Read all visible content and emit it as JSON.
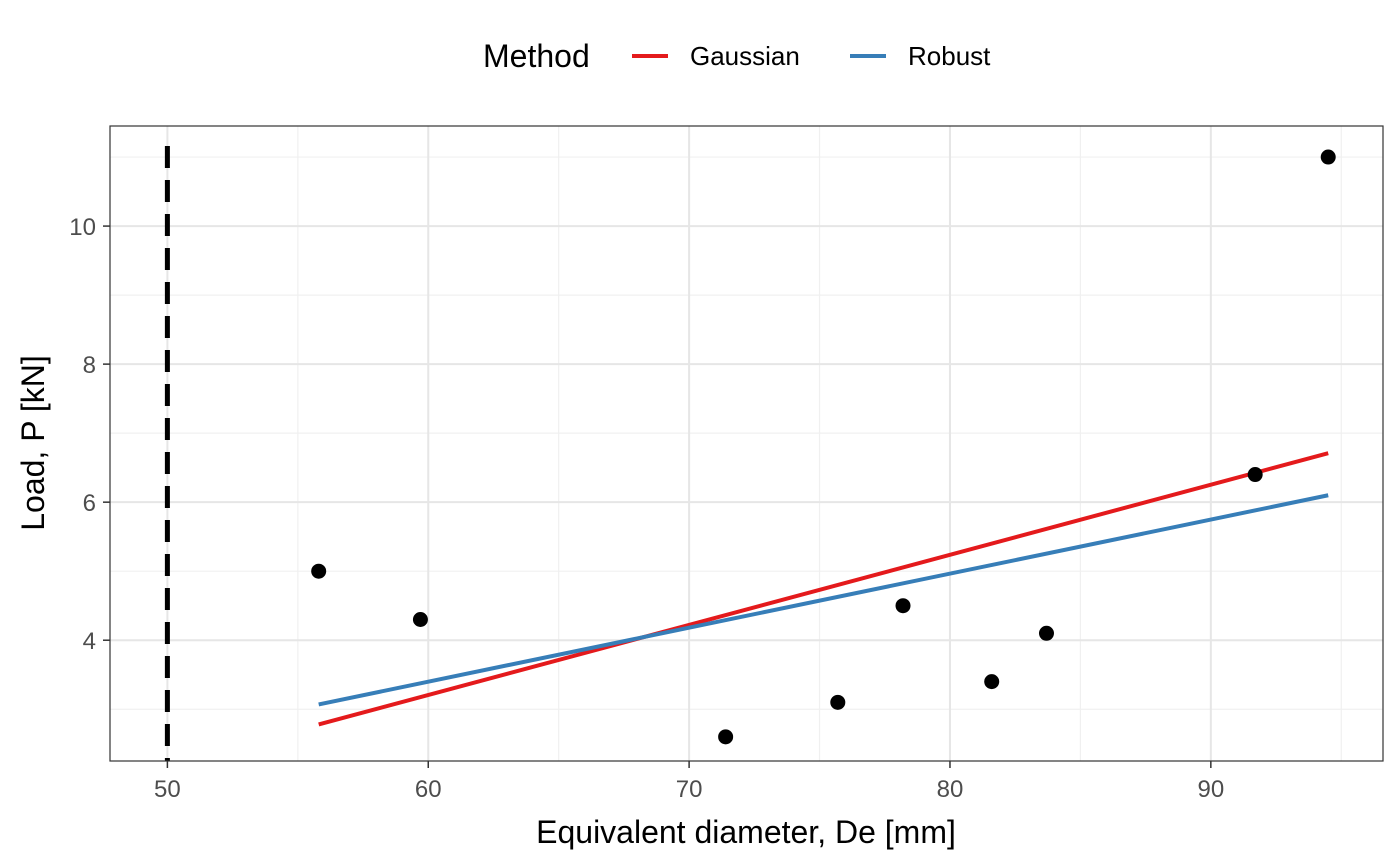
{
  "chart_data": {
    "type": "scatter",
    "xlabel": "Equivalent diameter, De [mm]",
    "ylabel": "Load, P [kN]",
    "xlim": [
      47.8,
      96.6
    ],
    "ylim": [
      2.25,
      11.45
    ],
    "x_ticks": [
      50,
      60,
      70,
      80,
      90
    ],
    "y_ticks": [
      4,
      6,
      8,
      10
    ],
    "grid": true,
    "legend": {
      "title": "Method",
      "position": "top",
      "entries": [
        {
          "label": "Gaussian",
          "color": "#e41a1c"
        },
        {
          "label": "Robust",
          "color": "#377eb8"
        }
      ]
    },
    "points": [
      {
        "x": 55.8,
        "y": 5.0
      },
      {
        "x": 59.7,
        "y": 4.3
      },
      {
        "x": 71.4,
        "y": 2.6
      },
      {
        "x": 75.7,
        "y": 3.1
      },
      {
        "x": 78.2,
        "y": 4.5
      },
      {
        "x": 81.6,
        "y": 3.4
      },
      {
        "x": 83.7,
        "y": 4.1
      },
      {
        "x": 91.7,
        "y": 6.4
      },
      {
        "x": 94.5,
        "y": 11.0
      }
    ],
    "fit_lines": [
      {
        "label": "Gaussian",
        "color": "#e41a1c",
        "x": [
          55.8,
          94.5
        ],
        "y": [
          2.78,
          6.71
        ]
      },
      {
        "label": "Robust",
        "color": "#377eb8",
        "x": [
          55.8,
          94.5
        ],
        "y": [
          3.07,
          6.1
        ]
      }
    ],
    "reference_line": {
      "x": 50,
      "style": "dashed",
      "color": "#000000"
    }
  }
}
